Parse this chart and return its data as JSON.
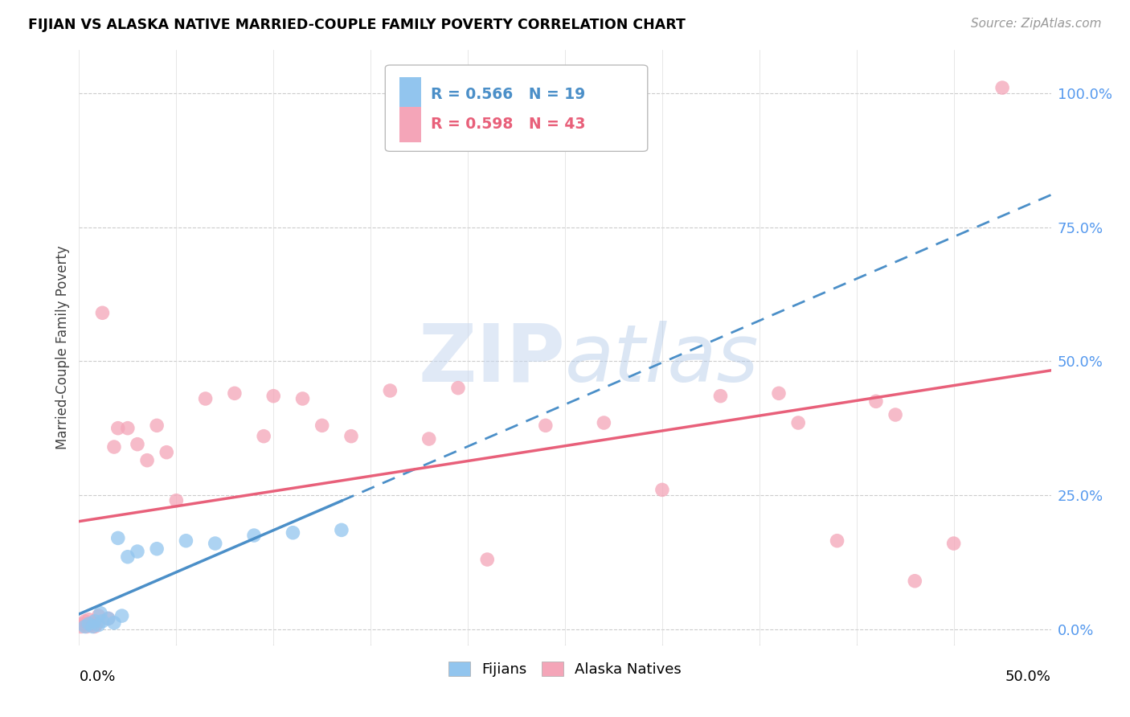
{
  "title": "FIJIAN VS ALASKA NATIVE MARRIED-COUPLE FAMILY POVERTY CORRELATION CHART",
  "source": "Source: ZipAtlas.com",
  "ylabel": "Married-Couple Family Poverty",
  "ytick_labels": [
    "0.0%",
    "25.0%",
    "50.0%",
    "75.0%",
    "100.0%"
  ],
  "ytick_vals": [
    0.0,
    25.0,
    50.0,
    75.0,
    100.0
  ],
  "xtick_labels": [
    "0.0%",
    "50.0%"
  ],
  "xlim": [
    0.0,
    50.0
  ],
  "ylim": [
    -3.0,
    108.0
  ],
  "watermark_zip": "ZIP",
  "watermark_atlas": "atlas",
  "legend_r_fijian": "R = 0.566",
  "legend_n_fijian": "N = 19",
  "legend_r_alaska": "R = 0.598",
  "legend_n_alaska": "N = 43",
  "fijian_color": "#92C5EE",
  "alaska_color": "#F4A5B8",
  "fijian_line_color": "#4B8FC8",
  "alaska_line_color": "#E8607A",
  "fijian_x": [
    0.3,
    0.5,
    0.7,
    0.8,
    1.0,
    1.1,
    1.2,
    1.5,
    1.8,
    2.0,
    2.2,
    2.5,
    3.0,
    4.0,
    5.5,
    7.0,
    9.0,
    11.0,
    13.5
  ],
  "fijian_y": [
    0.5,
    1.0,
    0.5,
    1.5,
    0.8,
    3.0,
    1.5,
    2.0,
    1.2,
    17.0,
    2.5,
    13.5,
    14.5,
    15.0,
    16.5,
    16.0,
    17.5,
    18.0,
    18.5
  ],
  "alaska_x": [
    0.1,
    0.2,
    0.3,
    0.4,
    0.5,
    0.6,
    0.7,
    0.8,
    0.9,
    1.0,
    1.2,
    1.5,
    1.8,
    2.0,
    2.5,
    3.0,
    3.5,
    4.0,
    4.5,
    5.0,
    6.5,
    8.0,
    9.5,
    10.0,
    11.5,
    12.5,
    14.0,
    16.0,
    18.0,
    19.5,
    21.0,
    24.0,
    27.0,
    30.0,
    33.0,
    36.0,
    37.0,
    39.0,
    41.0,
    42.0,
    43.0,
    45.0,
    47.5
  ],
  "alaska_y": [
    0.5,
    1.0,
    1.5,
    0.5,
    1.8,
    0.8,
    1.2,
    0.5,
    1.0,
    2.5,
    59.0,
    2.0,
    34.0,
    37.5,
    37.5,
    34.5,
    31.5,
    38.0,
    33.0,
    24.0,
    43.0,
    44.0,
    36.0,
    43.5,
    43.0,
    38.0,
    36.0,
    44.5,
    35.5,
    45.0,
    13.0,
    38.0,
    38.5,
    26.0,
    43.5,
    44.0,
    38.5,
    16.5,
    42.5,
    40.0,
    9.0,
    16.0,
    101.0
  ]
}
